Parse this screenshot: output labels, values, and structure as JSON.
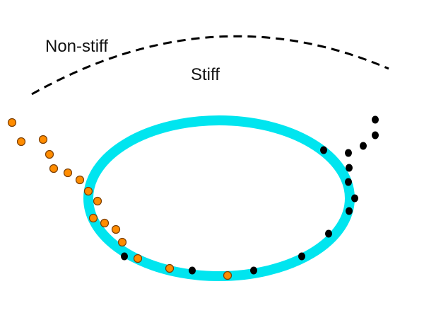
{
  "labels": {
    "non_stiff": "Non-stiff",
    "stiff": "Stiff"
  },
  "colors": {
    "boundary": "#000000",
    "ellipse": "#00e5ef",
    "orange_fill": "#ff8c00",
    "orange_stroke": "#7a3d00",
    "black_dot": "#000000"
  },
  "elements": {
    "boundary_style": "dashed",
    "ellipse": "cyan-ring",
    "orange_trajectory": "orange-circles",
    "black_trajectory": "black-dots"
  }
}
